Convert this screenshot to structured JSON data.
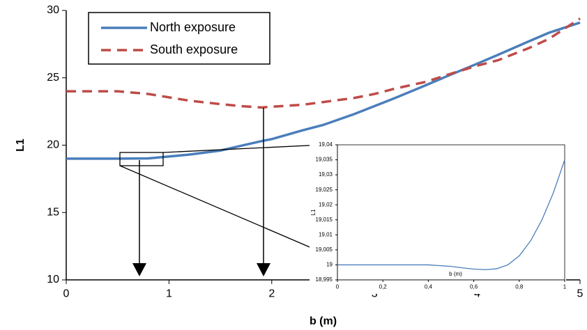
{
  "chart_data": [
    {
      "type": "line",
      "xlabel": "b (m)",
      "ylabel": "L1",
      "xlim": [
        0,
        5
      ],
      "xticks": [
        0,
        1,
        2,
        3,
        4,
        5
      ],
      "ylim": [
        10,
        30
      ],
      "yticks": [
        10,
        15,
        20,
        25,
        30
      ],
      "legend": "upper left",
      "x": [
        0,
        0.5,
        0.8,
        1.2,
        1.5,
        1.7,
        1.9,
        2,
        2.3,
        2.5,
        2.8,
        3,
        3.2,
        3.5,
        3.7,
        4,
        4.2,
        4.5,
        4.7,
        5
      ],
      "series": [
        {
          "name": "North exposure",
          "color": "#4a7ebb",
          "style": "solid",
          "values": [
            19,
            19,
            19.02,
            19.3,
            19.6,
            19.95,
            20.3,
            20.45,
            21.1,
            21.5,
            22.3,
            22.9,
            23.5,
            24.45,
            25.1,
            26.05,
            26.7,
            27.7,
            28.35,
            29.1
          ]
        },
        {
          "name": "South exposure",
          "color": "#be4b48",
          "style": "dashed",
          "values": [
            24,
            24,
            23.8,
            23.3,
            23.05,
            22.9,
            22.8,
            22.85,
            23,
            23.2,
            23.5,
            23.8,
            24.2,
            24.7,
            25.2,
            25.9,
            26.3,
            27.2,
            27.9,
            29.4
          ]
        }
      ]
    },
    {
      "type": "line",
      "xlabel": "b (m)",
      "ylabel": "L1",
      "xlim": [
        0,
        1
      ],
      "xticks": [
        0,
        {
          "value": 0.2,
          "label": "0,2"
        },
        {
          "value": 0.4,
          "label": "0,4"
        },
        {
          "value": 0.6,
          "label": "0,6"
        },
        {
          "value": 0.8,
          "label": "0,8"
        },
        1
      ],
      "ylim": [
        18.995,
        19.04
      ],
      "yticks": [
        {
          "value": 18.995,
          "label": "18,995"
        },
        19,
        {
          "value": 19.005,
          "label": "19,005"
        },
        {
          "value": 19.01,
          "label": "19,01"
        },
        {
          "value": 19.015,
          "label": "19,015"
        },
        {
          "value": 19.02,
          "label": "19,02"
        },
        {
          "value": 19.025,
          "label": "19,025"
        },
        {
          "value": 19.03,
          "label": "19,03"
        },
        {
          "value": 19.035,
          "label": "19,035"
        },
        {
          "value": 19.04,
          "label": "19,04"
        }
      ],
      "x": [
        0,
        0.2,
        0.4,
        0.5,
        0.55,
        0.6,
        0.65,
        0.7,
        0.75,
        0.8,
        0.85,
        0.9,
        0.95,
        1
      ],
      "series": [
        {
          "name": "North exposure",
          "color": "#4a7ebb",
          "style": "solid",
          "values": [
            19,
            19,
            19,
            18.9995,
            18.999,
            18.9986,
            18.9984,
            18.9987,
            19,
            19.003,
            19.008,
            19.015,
            19.024,
            19.035
          ]
        }
      ]
    }
  ]
}
